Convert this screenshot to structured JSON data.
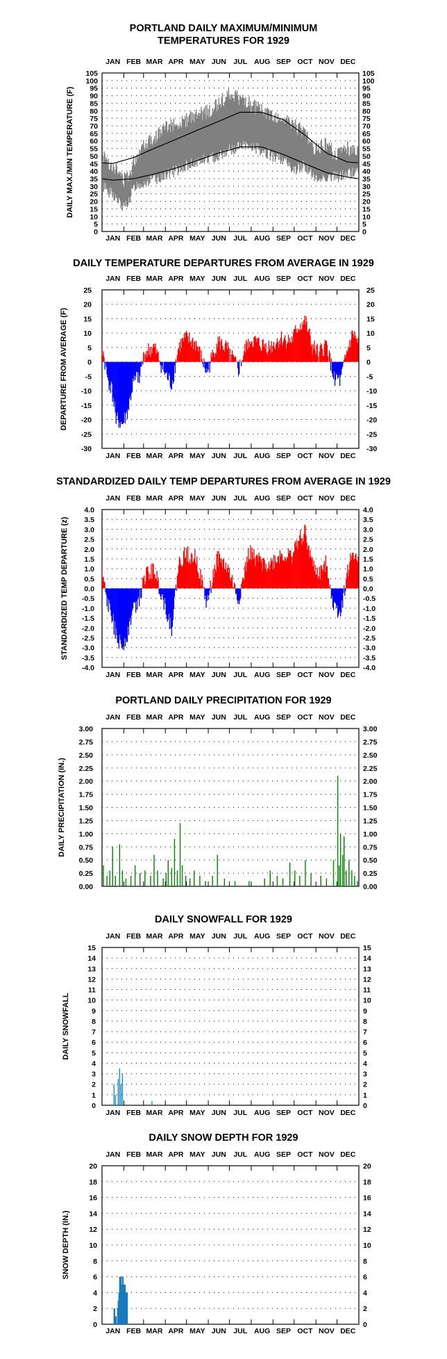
{
  "chart_data": [
    {
      "type": "line",
      "title": [
        "PORTLAND DAILY MAXIMUM/MINIMUM",
        "TEMPERATURES FOR 1929"
      ],
      "ylabel": "DAILY MAX./MIN TEMPERATURE (F)",
      "months": [
        "JAN",
        "FEB",
        "MAR",
        "APR",
        "MAY",
        "JUN",
        "JUL",
        "AUG",
        "SEP",
        "OCT",
        "NOV",
        "DEC"
      ],
      "ylim": [
        0,
        105
      ],
      "ytick_step": 5,
      "grid": "dotted",
      "colors": {
        "observed": "#808080",
        "normals": "#000000"
      },
      "normal_max": {
        "month_mid_values": [
          45,
          49,
          55,
          61,
          67,
          73,
          79,
          79,
          74,
          64,
          52,
          46
        ]
      },
      "normal_min": {
        "month_mid_values": [
          34,
          35,
          38,
          42,
          47,
          52,
          56,
          56,
          51,
          45,
          39,
          36
        ]
      },
      "observed_range": {
        "x_days": [
          1,
          15,
          32,
          40,
          48,
          60,
          75,
          90,
          105,
          121,
          135,
          152,
          166,
          182,
          196,
          213,
          227,
          244,
          258,
          274,
          288,
          305,
          319,
          335,
          349,
          365
        ],
        "low": [
          30,
          25,
          15,
          22,
          30,
          32,
          34,
          38,
          40,
          44,
          46,
          48,
          50,
          54,
          56,
          56,
          54,
          50,
          48,
          40,
          44,
          34,
          36,
          36,
          38,
          40
        ],
        "high": [
          50,
          44,
          34,
          38,
          48,
          58,
          62,
          68,
          72,
          74,
          76,
          80,
          84,
          92,
          88,
          84,
          80,
          76,
          74,
          70,
          66,
          54,
          58,
          50,
          56,
          52
        ]
      }
    },
    {
      "type": "bar",
      "title": "DAILY TEMPERATURE DEPARTURES FROM AVERAGE IN 1929",
      "ylabel": "DEPARTURE FROM AVERAGE (F)",
      "months": [
        "JAN",
        "FEB",
        "MAR",
        "APR",
        "MAY",
        "JUN",
        "JUL",
        "AUG",
        "SEP",
        "OCT",
        "NOV",
        "DEC"
      ],
      "ylim": [
        -30,
        25
      ],
      "ytick_step": 5,
      "grid": "dotted",
      "colors": {
        "positive": "#ff0000",
        "negative": "#0000ff"
      },
      "anchors": {
        "x_days": [
          1,
          8,
          15,
          22,
          30,
          38,
          45,
          55,
          62,
          75,
          90,
          100,
          110,
          120,
          135,
          150,
          165,
          180,
          195,
          210,
          225,
          240,
          255,
          270,
          280,
          290,
          300,
          310,
          320,
          330,
          340,
          350,
          358,
          365
        ],
        "values": [
          6,
          -5,
          -10,
          -20,
          -22,
          -17,
          -8,
          -4,
          3,
          5,
          -4,
          -8,
          5,
          8,
          6,
          -4,
          7,
          4,
          -3,
          8,
          6,
          5,
          8,
          7,
          12,
          14,
          5,
          3,
          6,
          -5,
          -7,
          4,
          10,
          6
        ]
      }
    },
    {
      "type": "bar",
      "title": "STANDARDIZED DAILY TEMP DEPARTURES FROM AVERAGE IN 1929",
      "ylabel": "STANDARDIZED TEMP DEPARTURE (z)",
      "months": [
        "JAN",
        "FEB",
        "MAR",
        "APR",
        "MAY",
        "JUN",
        "JUL",
        "AUG",
        "SEP",
        "OCT",
        "NOV",
        "DEC"
      ],
      "ylim": [
        -4,
        4
      ],
      "ytick_step": 0.5,
      "grid": "dotted",
      "colors": {
        "positive": "#ff0000",
        "negative": "#0000ff"
      },
      "anchors": {
        "x_days": [
          1,
          8,
          15,
          22,
          30,
          38,
          45,
          55,
          62,
          75,
          90,
          100,
          110,
          120,
          135,
          150,
          165,
          180,
          195,
          210,
          225,
          240,
          255,
          270,
          280,
          290,
          300,
          310,
          320,
          330,
          340,
          350,
          358,
          365
        ],
        "values": [
          0.8,
          -0.7,
          -1.4,
          -2.6,
          -2.9,
          -2.2,
          -1.0,
          -0.5,
          0.6,
          1.0,
          -0.8,
          -2.0,
          1.2,
          1.8,
          1.5,
          -0.8,
          1.6,
          1.0,
          -0.6,
          1.8,
          1.4,
          1.2,
          1.7,
          1.6,
          2.4,
          2.9,
          1.2,
          0.7,
          1.4,
          -0.9,
          -1.2,
          0.8,
          1.9,
          1.2
        ]
      }
    },
    {
      "type": "bar",
      "title": "PORTLAND DAILY PRECIPITATION FOR 1929",
      "ylabel": "DAILY PRECIPITATION (IN.)",
      "months": [
        "JAN",
        "FEB",
        "MAR",
        "APR",
        "MAY",
        "JUN",
        "JUL",
        "AUG",
        "SEP",
        "OCT",
        "NOV",
        "DEC"
      ],
      "ylim": [
        0,
        3.0
      ],
      "ytick_step": 0.25,
      "grid": "dotted",
      "colors": {
        "bars": "#008000"
      },
      "days": [
        3,
        8,
        12,
        16,
        20,
        26,
        30,
        35,
        42,
        48,
        55,
        62,
        70,
        75,
        80,
        88,
        92,
        95,
        100,
        104,
        108,
        112,
        115,
        120,
        126,
        132,
        140,
        148,
        158,
        165,
        175,
        190,
        210,
        232,
        240,
        250,
        258,
        268,
        275,
        282,
        290,
        298,
        312,
        320,
        330,
        336,
        338,
        340,
        343,
        345,
        348,
        352,
        356,
        360,
        364
      ],
      "values": [
        0.4,
        0.2,
        0.3,
        0.75,
        0.2,
        0.8,
        0.3,
        0.15,
        0.2,
        0.4,
        0.25,
        0.3,
        0.2,
        0.6,
        0.3,
        0.15,
        0.25,
        0.5,
        0.35,
        0.9,
        0.3,
        1.2,
        0.4,
        0.2,
        0.15,
        0.3,
        0.2,
        0.1,
        0.2,
        0.6,
        0.15,
        0.1,
        0.1,
        0.15,
        0.3,
        0.2,
        0.15,
        0.45,
        0.3,
        0.2,
        0.5,
        0.25,
        0.2,
        0.15,
        0.5,
        2.1,
        0.4,
        1.0,
        0.6,
        0.95,
        0.3,
        0.5,
        0.3,
        0.2,
        0.1
      ]
    },
    {
      "type": "bar",
      "title": "DAILY SNOWFALL FOR 1929",
      "ylabel": "DAILY SNOWFALL",
      "months": [
        "JAN",
        "FEB",
        "MAR",
        "APR",
        "MAY",
        "JUN",
        "JUL",
        "AUG",
        "SEP",
        "OCT",
        "NOV",
        "DEC"
      ],
      "ylim": [
        0,
        15
      ],
      "ytick_step": 1,
      "grid": "dotted",
      "colors": {
        "bars": "#1a8ad4"
      },
      "days": [
        18,
        20,
        24,
        26,
        28,
        30,
        72
      ],
      "values": [
        2.0,
        1.0,
        2.5,
        3.5,
        2.0,
        3.0,
        0.4
      ]
    },
    {
      "type": "bar",
      "title": "DAILY SNOW DEPTH FOR 1929",
      "ylabel": "SNOW DEPTH (IN.)",
      "months": [
        "JAN",
        "FEB",
        "MAR",
        "APR",
        "MAY",
        "JUN",
        "JUL",
        "AUG",
        "SEP",
        "OCT",
        "NOV",
        "DEC"
      ],
      "ylim": [
        0,
        20
      ],
      "ytick_step": 2,
      "grid": "dotted",
      "colors": {
        "bars": "#1a7abf"
      },
      "days": [
        18,
        19,
        20,
        21,
        22,
        23,
        24,
        25,
        26,
        27,
        28,
        29,
        30,
        31,
        32,
        33,
        34,
        35,
        36,
        37
      ],
      "values": [
        2,
        2,
        1,
        1,
        0,
        2,
        3,
        4,
        6,
        6,
        6,
        5,
        6,
        6,
        5,
        5,
        5,
        4,
        4,
        4
      ]
    }
  ]
}
